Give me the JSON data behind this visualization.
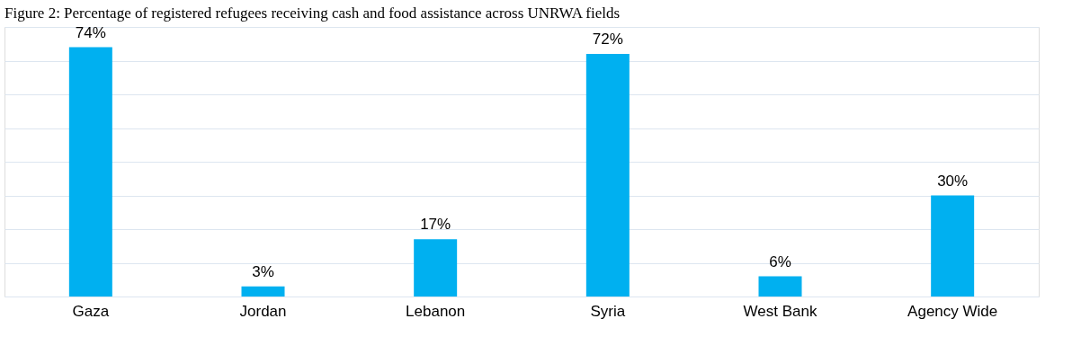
{
  "chart_data": {
    "type": "bar",
    "title": "Figure 2: Percentage of registered refugees receiving cash and food assistance across UNRWA fields",
    "categories": [
      "Gaza",
      "Jordan",
      "Lebanon",
      "Syria",
      "West Bank",
      "Agency Wide"
    ],
    "values": [
      74,
      3,
      17,
      72,
      6,
      30
    ],
    "value_labels": [
      "74%",
      "3%",
      "17%",
      "72%",
      "6%",
      "30%"
    ],
    "color": "#00b0f0",
    "ylim": [
      0,
      80
    ],
    "yticks": [
      {
        "value": 0,
        "label": null
      },
      {
        "value": 10,
        "label": null
      },
      {
        "value": 20,
        "label": null
      },
      {
        "value": 30,
        "label": null
      },
      {
        "value": 40,
        "label": null
      },
      {
        "value": 50,
        "label": null
      },
      {
        "value": 60,
        "label": null
      },
      {
        "value": 70,
        "label": null
      },
      {
        "value": 80,
        "label": null
      }
    ],
    "tick_labels": "x",
    "grid": "y"
  }
}
